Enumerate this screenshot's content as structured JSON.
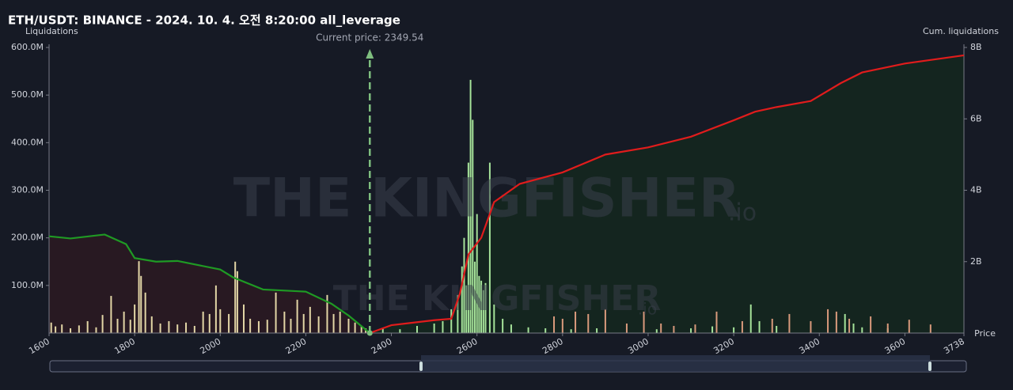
{
  "chart_data": {
    "type": "liquidation",
    "title": "ETH/USDT: BINANCE - 2024. 10. 4. 오전 8:20:00 all_leverage",
    "y_label": "Liquidations",
    "y2_label": "Cum. liquidations",
    "x_label": "Price",
    "annotation": "Current price: 2349.54",
    "current_price": 2349.54,
    "watermark": "THE KINGFISHER",
    "watermark_suffix": ".io",
    "xlim": [
      1600,
      3738
    ],
    "xticks": [
      1600,
      1800,
      2000,
      2200,
      2400,
      2600,
      2800,
      3000,
      3200,
      3400,
      3600,
      3738
    ],
    "ylim": [
      0,
      600000000
    ],
    "yticks": [
      {
        "value": 100000000,
        "label": "100.0M"
      },
      {
        "value": 200000000,
        "label": "200.0M"
      },
      {
        "value": 300000000,
        "label": "300.0M"
      },
      {
        "value": 400000000,
        "label": "400.0M"
      },
      {
        "value": 500000000,
        "label": "500.0M"
      },
      {
        "value": 600000000,
        "label": "600.0M"
      }
    ],
    "y2lim": [
      0,
      8000000000
    ],
    "y2ticks": [
      {
        "value": 2000000000,
        "label": "2B"
      },
      {
        "value": 4000000000,
        "label": "4B"
      },
      {
        "value": 6000000000,
        "label": "6B"
      },
      {
        "value": 8000000000,
        "label": "8B"
      }
    ],
    "series": [
      {
        "type": "bar",
        "color": "#e3d6a6",
        "x": [
          1605,
          1615,
          1630,
          1650,
          1670,
          1690,
          1710,
          1725,
          1745,
          1760,
          1775,
          1790,
          1800,
          1810,
          1815,
          1825,
          1840,
          1860,
          1880,
          1900,
          1920,
          1940,
          1960,
          1975,
          1990,
          2000,
          2020,
          2035,
          2040,
          2055,
          2070,
          2090,
          2110,
          2130,
          2150,
          2165,
          2180,
          2195,
          2210,
          2230,
          2250,
          2265,
          2280,
          2300,
          2315,
          2330,
          2340
        ],
        "values": [
          22000000,
          14000000,
          18000000,
          10000000,
          16000000,
          25000000,
          12000000,
          38000000,
          78000000,
          30000000,
          45000000,
          28000000,
          60000000,
          151000000,
          120000000,
          85000000,
          35000000,
          20000000,
          25000000,
          18000000,
          22000000,
          15000000,
          45000000,
          40000000,
          100000000,
          50000000,
          40000000,
          150000000,
          130000000,
          60000000,
          30000000,
          25000000,
          28000000,
          85000000,
          45000000,
          30000000,
          70000000,
          40000000,
          55000000,
          35000000,
          80000000,
          40000000,
          45000000,
          30000000,
          22000000,
          15000000,
          10000000
        ]
      },
      {
        "type": "bar",
        "color": "#a6e39a",
        "x": [
          2380,
          2420,
          2460,
          2500,
          2520,
          2540,
          2555,
          2565,
          2570,
          2575,
          2580,
          2585,
          2590,
          2595,
          2600,
          2605,
          2610,
          2615,
          2620,
          2630,
          2640,
          2660,
          2680,
          2720,
          2760,
          2820,
          2880,
          3020,
          3100,
          3150,
          3200,
          3240,
          3260,
          3300,
          3460,
          3480,
          3500,
          3560
        ],
        "values": [
          10000000,
          8000000,
          15000000,
          20000000,
          25000000,
          50000000,
          80000000,
          140000000,
          200000000,
          100000000,
          358000000,
          532000000,
          448000000,
          150000000,
          250000000,
          120000000,
          110000000,
          90000000,
          105000000,
          358000000,
          60000000,
          30000000,
          18000000,
          12000000,
          10000000,
          8000000,
          10000000,
          8000000,
          10000000,
          14000000,
          12000000,
          60000000,
          25000000,
          15000000,
          40000000,
          20000000,
          12000000,
          10000000
        ]
      },
      {
        "type": "bar",
        "color": "#d99a7c",
        "x": [
          2780,
          2800,
          2830,
          2860,
          2900,
          2950,
          2990,
          3030,
          3060,
          3110,
          3160,
          3220,
          3290,
          3330,
          3380,
          3420,
          3440,
          3470,
          3520,
          3560,
          3610,
          3660
        ],
        "values": [
          35000000,
          30000000,
          45000000,
          40000000,
          50000000,
          20000000,
          45000000,
          20000000,
          15000000,
          18000000,
          45000000,
          25000000,
          30000000,
          40000000,
          25000000,
          50000000,
          45000000,
          30000000,
          35000000,
          20000000,
          28000000,
          18000000
        ]
      },
      {
        "type": "line",
        "axis": "y2",
        "color": "#1f9a24",
        "fill": "#2a1a22",
        "x": [
          1600,
          1650,
          1730,
          1780,
          1800,
          1850,
          1900,
          2000,
          2030,
          2100,
          2200,
          2260,
          2300,
          2349.54
        ],
        "values": [
          2710000000,
          2650000000,
          2760000000,
          2490000000,
          2100000000,
          2000000000,
          2020000000,
          1780000000,
          1560000000,
          1220000000,
          1160000000,
          820000000,
          490000000,
          0
        ]
      },
      {
        "type": "line",
        "axis": "y2",
        "color": "#e01c1c",
        "fill": "#14271f",
        "x": [
          2349.54,
          2400,
          2500,
          2540,
          2560,
          2580,
          2610,
          2640,
          2700,
          2800,
          2900,
          3000,
          3100,
          3200,
          3250,
          3300,
          3380,
          3450,
          3500,
          3600,
          3738
        ],
        "values": [
          0,
          220000000,
          360000000,
          400000000,
          1100000000,
          2200000000,
          2670000000,
          3670000000,
          4180000000,
          4500000000,
          5000000000,
          5200000000,
          5500000000,
          5960000000,
          6200000000,
          6330000000,
          6500000000,
          7000000000,
          7300000000,
          7550000000,
          7780000000
        ]
      }
    ]
  }
}
